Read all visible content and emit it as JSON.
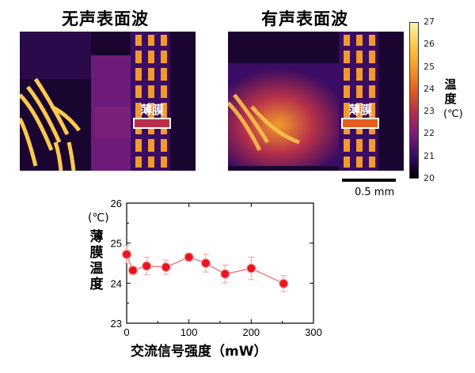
{
  "panels": {
    "left_title": "无声表面波",
    "right_title": "有声表面波",
    "film_label": "薄膜"
  },
  "colorbar": {
    "title": "温度",
    "unit": "(℃)",
    "ticks": [
      "27",
      "26",
      "25",
      "24",
      "23",
      "22",
      "21",
      "20"
    ],
    "colors": [
      "#fff5a8",
      "#fcca4c",
      "#f49a2b",
      "#e2601e",
      "#b6304a",
      "#7a1f7a",
      "#3a0c63",
      "#000004"
    ]
  },
  "scale_bar": {
    "label": "0.5 mm"
  },
  "chart_data": {
    "type": "line",
    "x": [
      0,
      10,
      32,
      63,
      100,
      127,
      158,
      200,
      252
    ],
    "y": [
      24.72,
      24.32,
      24.43,
      24.4,
      24.65,
      24.5,
      24.23,
      24.37,
      23.99
    ],
    "yerr": [
      0.22,
      0.1,
      0.22,
      0.18,
      0.1,
      0.22,
      0.22,
      0.28,
      0.2
    ],
    "xlim": [
      0,
      300
    ],
    "ylim": [
      23,
      26
    ],
    "xticks": [
      "0",
      "100",
      "200",
      "300"
    ],
    "yticks": [
      "26",
      "25",
      "24",
      "23"
    ],
    "xlabel": "交流信号强度（mW）",
    "ylabel": "薄膜温度",
    "ylabel_unit": "(℃)",
    "marker_color": "#e8141e",
    "line_color": "#f08080",
    "errorbar_color": "#f0a0a0"
  }
}
